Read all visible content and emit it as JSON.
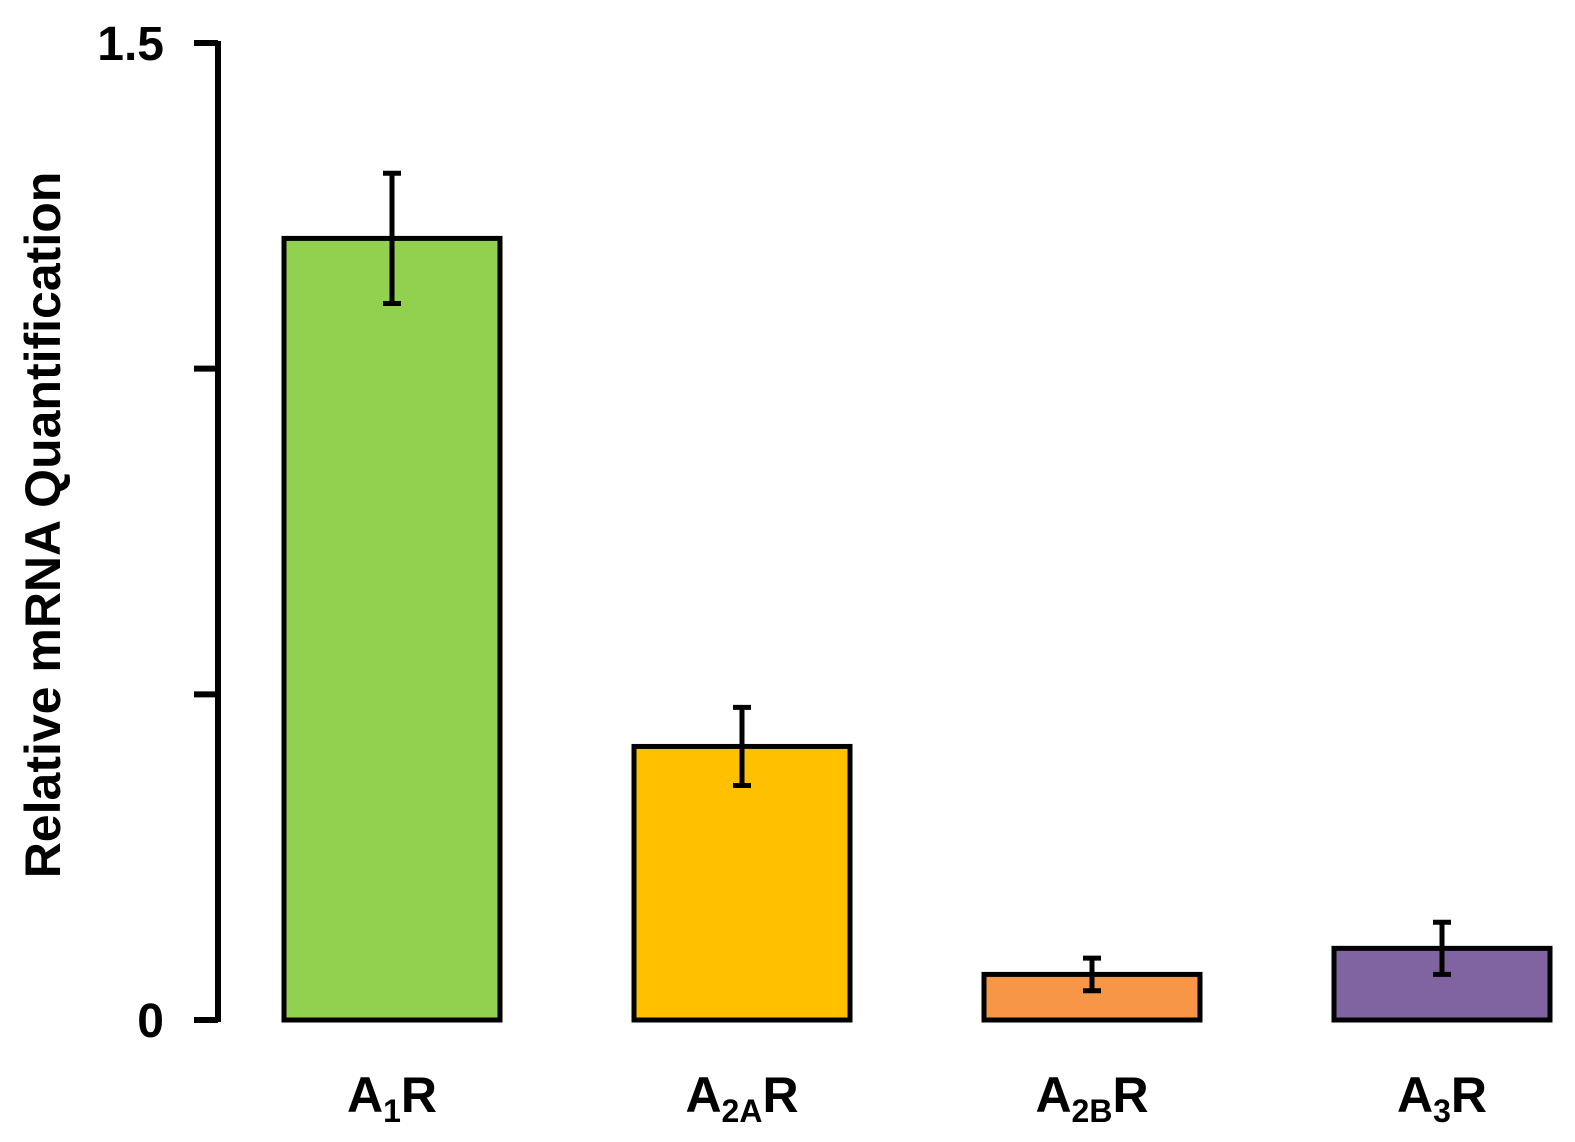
{
  "chart_data": {
    "type": "bar",
    "ylabel": "Relative mRNA Quantification",
    "xlabel": "",
    "ylim": [
      0,
      1.5
    ],
    "yticks": [
      0,
      0.5,
      1.0,
      1.5
    ],
    "ytick_labels": [
      "0",
      "",
      "",
      "1.5"
    ],
    "grid": false,
    "categories": [
      {
        "main": "A",
        "sub": "1",
        "suffix": "R"
      },
      {
        "main": "A",
        "sub": "2A",
        "suffix": "R"
      },
      {
        "main": "A",
        "sub": "2B",
        "suffix": "R"
      },
      {
        "main": "A",
        "sub": "3",
        "suffix": "R"
      }
    ],
    "values": [
      1.2,
      0.42,
      0.07,
      0.11
    ],
    "errors": [
      0.1,
      0.06,
      0.025,
      0.04
    ],
    "colors": [
      "#92d050",
      "#ffc000",
      "#f79646",
      "#8064a2"
    ]
  }
}
